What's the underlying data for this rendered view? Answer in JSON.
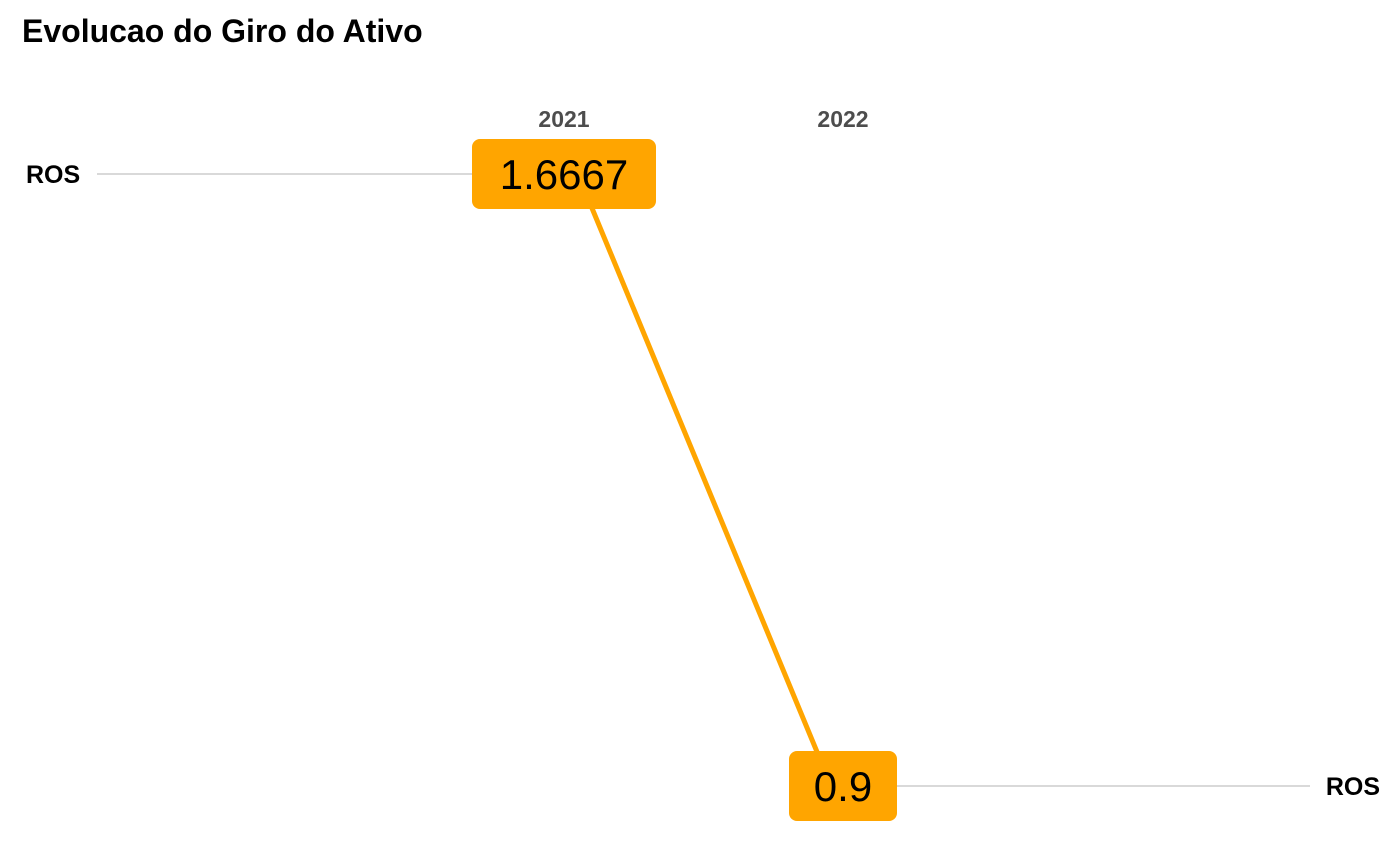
{
  "chart_data": {
    "type": "line",
    "title": "Evolucao do Giro do Ativo",
    "categories": [
      "2021",
      "2022"
    ],
    "series": [
      {
        "name": "ROS",
        "values": [
          1.6667,
          0.9
        ],
        "labels": [
          "1.6667",
          "0.9"
        ]
      }
    ],
    "ylim": [
      0.9,
      1.6667
    ],
    "grid": false,
    "legend": "none",
    "colors": {
      "line": "#FFA500",
      "label_box": "#FFA500",
      "guide_line": "#d9d9d9",
      "year_text": "#4d4d4d"
    }
  }
}
